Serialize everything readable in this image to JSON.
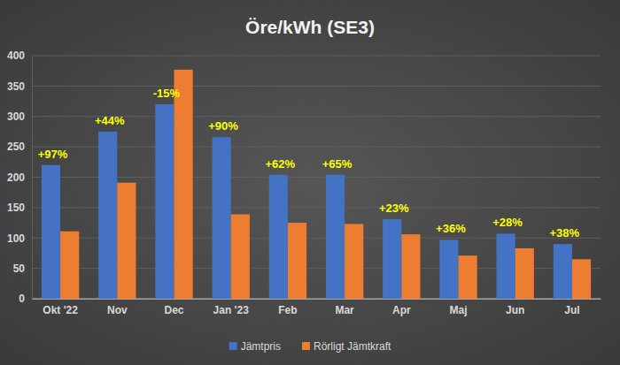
{
  "chart_data": {
    "type": "bar",
    "title": "Öre/kWh (SE3)",
    "categories": [
      "Okt '22",
      "Nov",
      "Dec",
      "Jan '23",
      "Feb",
      "Mar",
      "Apr",
      "Maj",
      "Jun",
      "Jul"
    ],
    "series": [
      {
        "name": "Jämtpris",
        "color": "#4472c4",
        "values": [
          220,
          275,
          320,
          266,
          204,
          204,
          131,
          97,
          107,
          90
        ]
      },
      {
        "name": "Rörligt Jämtkraft",
        "color": "#ed7d31",
        "values": [
          111,
          191,
          377,
          139,
          125,
          123,
          106,
          71,
          83,
          65
        ]
      }
    ],
    "annotations": [
      "+97%",
      "+44%",
      "-15%",
      "+90%",
      "+62%",
      "+65%",
      "+23%",
      "+36%",
      "+28%",
      "+38%"
    ],
    "ylim": [
      0,
      400
    ],
    "yticks": [
      0,
      50,
      100,
      150,
      200,
      250,
      300,
      350,
      400
    ],
    "grid": true,
    "legend": "bottom"
  }
}
